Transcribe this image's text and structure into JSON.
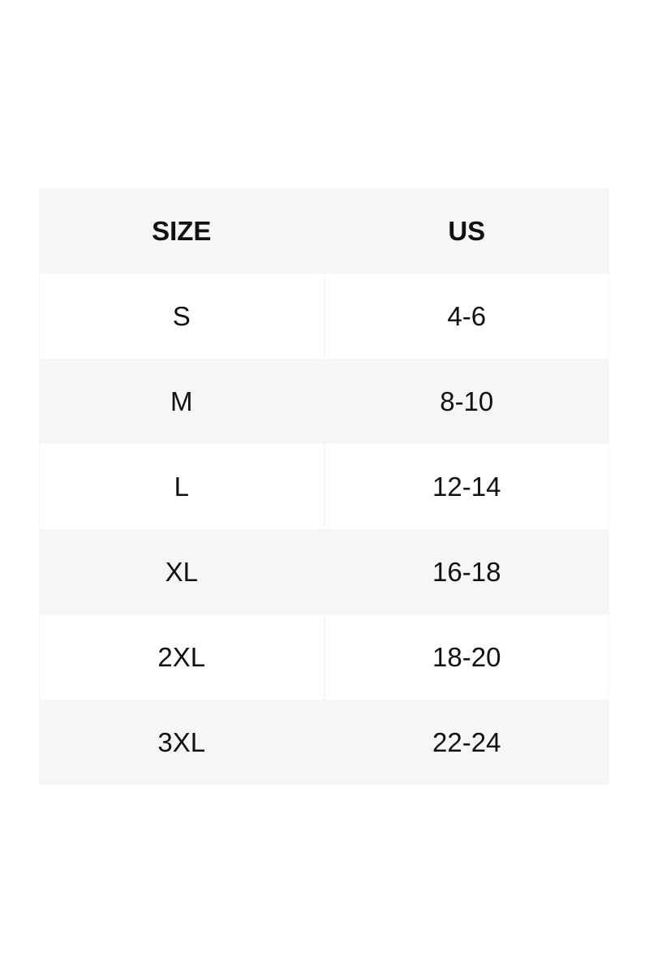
{
  "table": {
    "headers": [
      "SIZE",
      "US"
    ],
    "rows": [
      [
        "S",
        "4-6"
      ],
      [
        "M",
        "8-10"
      ],
      [
        "L",
        "12-14"
      ],
      [
        "XL",
        "16-18"
      ],
      [
        "2XL",
        "18-20"
      ],
      [
        "3XL",
        "22-24"
      ]
    ]
  },
  "colors": {
    "stripe": "#f6f6f6",
    "text": "#111111"
  }
}
